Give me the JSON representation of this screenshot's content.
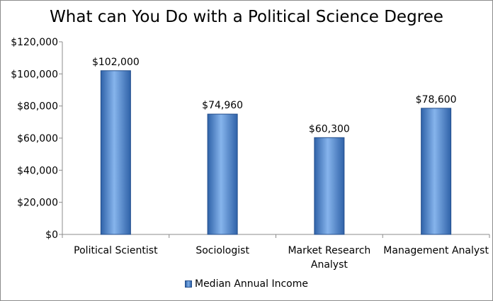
{
  "chart_data": {
    "type": "bar",
    "title": "What can You Do with a Political Science Degree",
    "categories": [
      [
        "Political Scientist"
      ],
      [
        "Sociologist"
      ],
      [
        "Market Research",
        "Analyst"
      ],
      [
        "Management Analyst"
      ]
    ],
    "series": [
      {
        "name": "Median Annual Income",
        "values": [
          102000,
          74960,
          60300,
          78600
        ],
        "labels": [
          "$102,000",
          "$74,960",
          "$60,300",
          "$78,600"
        ]
      }
    ],
    "ylim": [
      0,
      120000
    ],
    "yticks": [
      0,
      20000,
      40000,
      60000,
      80000,
      100000,
      120000
    ],
    "ytick_labels": [
      "$0",
      "$20,000",
      "$40,000",
      "$60,000",
      "$80,000",
      "$100,000",
      "$120,000"
    ],
    "xlabel": "",
    "ylabel": "",
    "grid": false,
    "legend_position": "bottom",
    "colors": {
      "bar_dark": "#2f62a8",
      "bar_light": "#86b4ec",
      "bar_stroke": "#254f8c",
      "axis": "#8c8c8c"
    }
  }
}
